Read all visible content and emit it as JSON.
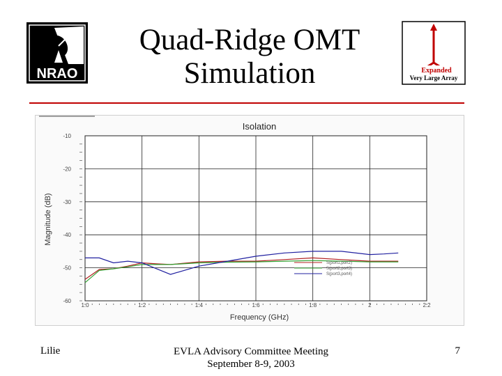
{
  "slide": {
    "title_line1": "Quad-Ridge OMT",
    "title_line2": "Simulation",
    "footer_left": "Lilie",
    "footer_center_line1": "EVLA Advisory Committee Meeting",
    "footer_center_line2": "September 8-9, 2003",
    "page_number": "7",
    "nrao_logo_text": "NRAO",
    "evla_logo_line1": "Expanded",
    "evla_logo_line2": "Very Large Array",
    "accent_color": "#c00000"
  },
  "chart_data": {
    "type": "line",
    "title": "Isolation",
    "xlabel": "Frequency (GHz)",
    "ylabel": "Magnitude (dB)",
    "xlim": [
      1.0,
      2.2
    ],
    "ylim": [
      -60,
      -10
    ],
    "x_ticks": [
      1.0,
      1.2,
      1.4,
      1.6,
      1.8,
      2.0,
      2.2
    ],
    "x_tick_labels": [
      "1.0",
      "1.2",
      "1.4",
      "1.6",
      "1.8",
      "2",
      "2.2"
    ],
    "y_ticks": [
      -10,
      -20,
      -30,
      -40,
      -50,
      -60
    ],
    "y_tick_labels": [
      "-10",
      "-20",
      "-30",
      "-40",
      "-50",
      "-60"
    ],
    "grid": true,
    "legend_position": "bottom-right",
    "series": [
      {
        "name": "S(port1,port2)",
        "color": "#b02020",
        "x": [
          1.0,
          1.05,
          1.1,
          1.15,
          1.2,
          1.25,
          1.3,
          1.4,
          1.5,
          1.6,
          1.7,
          1.8,
          1.9,
          2.0,
          2.1
        ],
        "y": [
          -53.5,
          -50.5,
          -50.3,
          -49.5,
          -48.5,
          -48.8,
          -49.0,
          -48.2,
          -48.0,
          -48.0,
          -47.5,
          -47.0,
          -47.5,
          -48.0,
          -48.0
        ]
      },
      {
        "name": "S(port2,port3)",
        "color": "#30a030",
        "x": [
          1.0,
          1.05,
          1.1,
          1.15,
          1.2,
          1.25,
          1.3,
          1.4,
          1.5,
          1.6,
          1.7,
          1.8,
          1.9,
          2.0,
          2.1
        ],
        "y": [
          -54.5,
          -50.8,
          -50.3,
          -49.7,
          -49.0,
          -49.0,
          -49.0,
          -48.5,
          -48.3,
          -48.2,
          -48.0,
          -47.8,
          -48.0,
          -48.2,
          -48.2
        ]
      },
      {
        "name": "S(port3,port4)",
        "color": "#2020a0",
        "x": [
          1.0,
          1.05,
          1.1,
          1.15,
          1.2,
          1.3,
          1.4,
          1.5,
          1.6,
          1.7,
          1.8,
          1.9,
          2.0,
          2.05,
          2.1
        ],
        "y": [
          -47.0,
          -47.0,
          -48.5,
          -48.0,
          -48.5,
          -52.0,
          -49.5,
          -48.0,
          -46.5,
          -45.5,
          -45.0,
          -45.0,
          -46.0,
          -45.8,
          -45.5
        ]
      }
    ]
  }
}
